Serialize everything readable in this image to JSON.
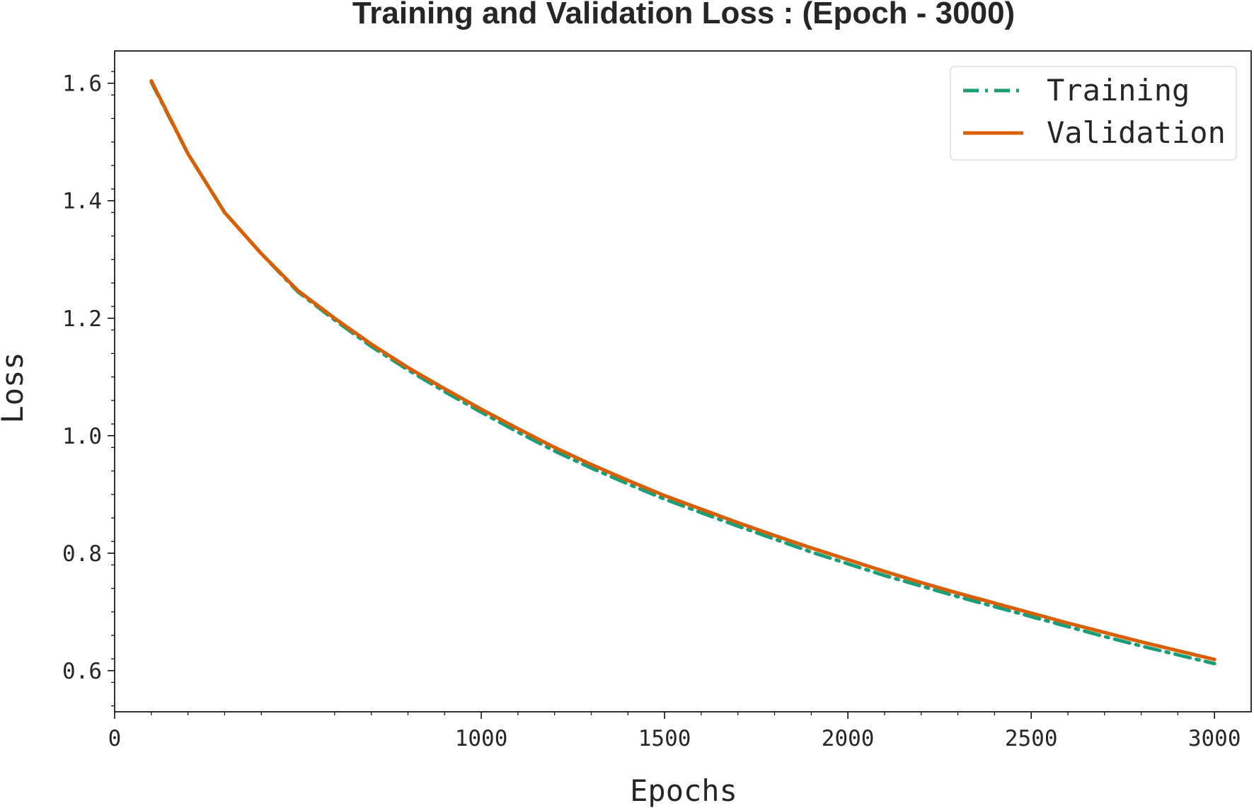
{
  "chart_data": {
    "type": "line",
    "title": "Training and Validation Loss : (Epoch - 3000)",
    "xlabel": "Epochs",
    "ylabel": "Loss",
    "xlim": [
      0,
      3100
    ],
    "ylim": [
      0.53,
      1.655
    ],
    "x_ticks": [
      "0",
      "1000",
      "1500",
      "2000",
      "2500",
      "3000"
    ],
    "y_ticks": [
      "0.6",
      "0.8",
      "1.0",
      "1.2",
      "1.4",
      "1.6"
    ],
    "legend_position": "top-right",
    "grid": false,
    "x": [
      100,
      200,
      300,
      400,
      500,
      600,
      700,
      800,
      900,
      1000,
      1100,
      1200,
      1300,
      1400,
      1500,
      1600,
      1700,
      1800,
      1900,
      2000,
      2100,
      2200,
      2300,
      2400,
      2500,
      2600,
      2700,
      2800,
      2900,
      3000
    ],
    "series": [
      {
        "name": "Training",
        "color": "#1b9e77",
        "style": "dashdot",
        "values": [
          1.602,
          1.48,
          1.38,
          1.31,
          1.245,
          1.197,
          1.152,
          1.112,
          1.075,
          1.04,
          1.006,
          0.974,
          0.945,
          0.918,
          0.892,
          0.869,
          0.846,
          0.824,
          0.802,
          0.782,
          0.762,
          0.744,
          0.726,
          0.709,
          0.692,
          0.675,
          0.658,
          0.642,
          0.627,
          0.612
        ]
      },
      {
        "name": "Validation",
        "color": "#d95f02",
        "style": "solid",
        "values": [
          1.604,
          1.48,
          1.38,
          1.31,
          1.247,
          1.2,
          1.156,
          1.116,
          1.08,
          1.045,
          1.012,
          0.98,
          0.951,
          0.924,
          0.898,
          0.875,
          0.852,
          0.83,
          0.809,
          0.789,
          0.769,
          0.75,
          0.732,
          0.715,
          0.698,
          0.681,
          0.665,
          0.649,
          0.634,
          0.619
        ]
      }
    ]
  }
}
